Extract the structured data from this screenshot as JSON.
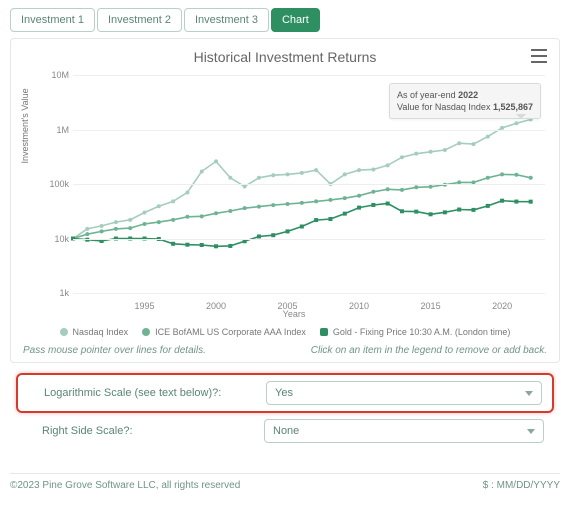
{
  "tabs": [
    {
      "label": "Investment 1",
      "active": false
    },
    {
      "label": "Investment 2",
      "active": false
    },
    {
      "label": "Investment 3",
      "active": false
    },
    {
      "label": "Chart",
      "active": true
    }
  ],
  "chart": {
    "title": "Historical Investment Returns",
    "type": "line",
    "y_axis_label": "Investment's Value",
    "x_axis_label": "Years",
    "y_scale": "log",
    "y_ticks": [
      "1k",
      "10k",
      "100k",
      "1M",
      "10M"
    ],
    "y_range_log10": [
      3,
      7
    ],
    "x_ticks": [
      1995,
      2000,
      2005,
      2010,
      2015,
      2020
    ],
    "x_range": [
      1990,
      2023
    ],
    "grid_color": "#eeeeee",
    "background_color": "#ffffff",
    "series": [
      {
        "name": "Nasdaq Index",
        "color": "#a5cdbb",
        "marker": "circle",
        "data": [
          [
            1990,
            10000
          ],
          [
            1991,
            15000
          ],
          [
            1992,
            17000
          ],
          [
            1993,
            20000
          ],
          [
            1994,
            22000
          ],
          [
            1995,
            30000
          ],
          [
            1996,
            39000
          ],
          [
            1997,
            48000
          ],
          [
            1998,
            70000
          ],
          [
            1999,
            170000
          ],
          [
            2000,
            260000
          ],
          [
            2001,
            130000
          ],
          [
            2002,
            90000
          ],
          [
            2003,
            130000
          ],
          [
            2004,
            145000
          ],
          [
            2005,
            150000
          ],
          [
            2006,
            160000
          ],
          [
            2007,
            180000
          ],
          [
            2008,
            100000
          ],
          [
            2009,
            150000
          ],
          [
            2010,
            180000
          ],
          [
            2011,
            185000
          ],
          [
            2012,
            220000
          ],
          [
            2013,
            310000
          ],
          [
            2014,
            360000
          ],
          [
            2015,
            390000
          ],
          [
            2016,
            420000
          ],
          [
            2017,
            560000
          ],
          [
            2018,
            540000
          ],
          [
            2019,
            740000
          ],
          [
            2020,
            1070000
          ],
          [
            2021,
            1300000
          ],
          [
            2022,
            1525867
          ]
        ]
      },
      {
        "name": "ICE BofAML US Corporate AAA Index",
        "color": "#6eb394",
        "marker": "circle",
        "data": [
          [
            1990,
            10000
          ],
          [
            1991,
            12000
          ],
          [
            1992,
            13500
          ],
          [
            1993,
            15000
          ],
          [
            1994,
            15500
          ],
          [
            1995,
            18500
          ],
          [
            1996,
            20000
          ],
          [
            1997,
            22000
          ],
          [
            1998,
            25000
          ],
          [
            1999,
            25500
          ],
          [
            2000,
            29000
          ],
          [
            2001,
            32000
          ],
          [
            2002,
            36000
          ],
          [
            2003,
            38500
          ],
          [
            2004,
            41000
          ],
          [
            2005,
            43000
          ],
          [
            2006,
            45000
          ],
          [
            2007,
            48000
          ],
          [
            2008,
            51000
          ],
          [
            2009,
            55000
          ],
          [
            2010,
            61000
          ],
          [
            2011,
            72000
          ],
          [
            2012,
            80000
          ],
          [
            2013,
            78000
          ],
          [
            2014,
            87000
          ],
          [
            2015,
            89000
          ],
          [
            2016,
            97000
          ],
          [
            2017,
            107000
          ],
          [
            2018,
            107000
          ],
          [
            2019,
            130000
          ],
          [
            2020,
            150000
          ],
          [
            2021,
            148000
          ],
          [
            2022,
            130000
          ]
        ]
      },
      {
        "name": "Gold - Fixing Price 10:30 A.M. (London time)",
        "color": "#2d8f62",
        "marker": "square",
        "data": [
          [
            1990,
            10000
          ],
          [
            1991,
            9500
          ],
          [
            1992,
            9000
          ],
          [
            1993,
            10000
          ],
          [
            1994,
            10000
          ],
          [
            1995,
            10000
          ],
          [
            1996,
            9800
          ],
          [
            1997,
            8000
          ],
          [
            1998,
            7700
          ],
          [
            1999,
            7600
          ],
          [
            2000,
            7200
          ],
          [
            2001,
            7300
          ],
          [
            2002,
            8900
          ],
          [
            2003,
            10900
          ],
          [
            2004,
            11500
          ],
          [
            2005,
            13500
          ],
          [
            2006,
            16600
          ],
          [
            2007,
            21800
          ],
          [
            2008,
            22800
          ],
          [
            2009,
            28600
          ],
          [
            2010,
            36900
          ],
          [
            2011,
            41200
          ],
          [
            2012,
            43800
          ],
          [
            2013,
            31600
          ],
          [
            2014,
            31100
          ],
          [
            2015,
            27800
          ],
          [
            2016,
            30200
          ],
          [
            2017,
            34000
          ],
          [
            2018,
            33500
          ],
          [
            2019,
            39700
          ],
          [
            2020,
            49400
          ],
          [
            2021,
            47600
          ],
          [
            2022,
            47400
          ]
        ]
      }
    ],
    "tooltip": {
      "prefix": "As of year-end ",
      "year": "2022",
      "line2_prefix": "Value for Nasdaq Index ",
      "value": "1,525,867"
    },
    "legend_items": [
      {
        "label": "Nasdaq Index",
        "color": "#a5cdbb",
        "shape": "circle"
      },
      {
        "label": "ICE BofAML US Corporate AAA Index",
        "color": "#6eb394",
        "shape": "circle"
      },
      {
        "label": "Gold - Fixing Price 10:30 A.M. (London time)",
        "color": "#2d8f62",
        "shape": "square"
      }
    ]
  },
  "hints": {
    "left": "Pass mouse pointer over lines for details.",
    "right": "Click on an item in the legend to remove or add back."
  },
  "form": {
    "log_scale": {
      "label": "Logarithmic Scale (see text below)?:",
      "value": "Yes",
      "highlight": true
    },
    "right_scale": {
      "label": "Right Side Scale?:",
      "value": "None",
      "highlight": false
    }
  },
  "footer": {
    "copyright": "©2023 Pine Grove Software LLC, all rights reserved",
    "format": "$ : MM/DD/YYYY"
  }
}
